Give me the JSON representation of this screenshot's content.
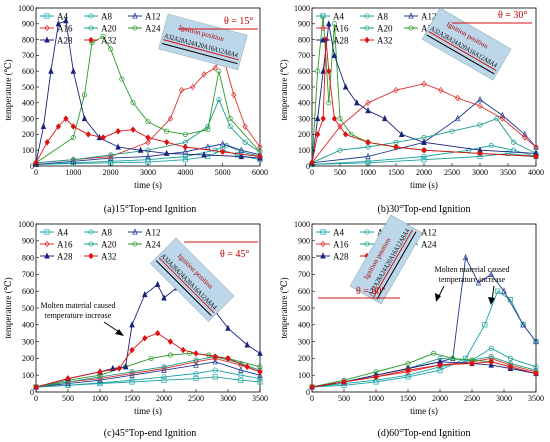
{
  "colors": {
    "A4": "#1aa3a3",
    "A8": "#1aa3a3",
    "A12": "#1f3a93",
    "A16": "#e03030",
    "A20": "#1a9c8a",
    "A24": "#2a9a2a",
    "A28": "#1a237e",
    "A32": "#e01010",
    "inset_bg": "#bcd6ea",
    "inset_red": "#d01010"
  },
  "legend": [
    "A4",
    "A8",
    "A12",
    "A16",
    "A20",
    "A24",
    "A28",
    "A32"
  ],
  "marker_shapes": {
    "A4": "square",
    "A8": "circle",
    "A12": "triangle",
    "A16": "diamond",
    "A20": "circle",
    "A24": "circle",
    "A28": "triangle",
    "A32": "diamond"
  },
  "inset": {
    "sequence": "A32A28A24A20A16A12A8A4",
    "ignition_label": "Ignition position"
  },
  "chart_data": [
    {
      "type": "line",
      "caption": "(a)15°Top-end Ignition",
      "angle_label": "θ = 15°",
      "xlabel": "time  (s)",
      "ylabel": "temperature (℃)",
      "xlim": [
        0,
        6000
      ],
      "ylim": [
        0,
        1000
      ],
      "xticks": [
        0,
        1000,
        2000,
        3000,
        4000,
        5000,
        6000
      ],
      "yticks": [
        0,
        100,
        200,
        300,
        400,
        500,
        600,
        700,
        800,
        900,
        1000
      ],
      "series": [
        {
          "name": "A4",
          "x": [
            0,
            1000,
            2000,
            3000,
            4000,
            4600,
            5000,
            5400,
            6000
          ],
          "y": [
            10,
            15,
            20,
            25,
            40,
            60,
            100,
            70,
            40
          ]
        },
        {
          "name": "A8",
          "x": [
            0,
            1000,
            2000,
            3000,
            4000,
            4800,
            5100,
            5500,
            6000
          ],
          "y": [
            10,
            20,
            30,
            40,
            60,
            100,
            130,
            90,
            60
          ]
        },
        {
          "name": "A12",
          "x": [
            0,
            1000,
            2000,
            3000,
            4000,
            4600,
            5000,
            5500,
            6000
          ],
          "y": [
            10,
            30,
            50,
            60,
            90,
            120,
            140,
            100,
            70
          ]
        },
        {
          "name": "A16",
          "x": [
            0,
            1000,
            2000,
            3000,
            3600,
            3900,
            4200,
            4500,
            4800,
            5000,
            5300,
            5600,
            6000
          ],
          "y": [
            20,
            40,
            60,
            150,
            300,
            480,
            500,
            580,
            620,
            700,
            450,
            250,
            120
          ]
        },
        {
          "name": "A20",
          "x": [
            0,
            1000,
            2000,
            3000,
            4000,
            4600,
            4900,
            5200,
            5600,
            6000
          ],
          "y": [
            20,
            40,
            70,
            100,
            150,
            250,
            420,
            250,
            150,
            90
          ]
        },
        {
          "name": "A24",
          "x": [
            0,
            1000,
            1300,
            1500,
            1800,
            2000,
            2300,
            2600,
            3000,
            3500,
            4000,
            4600,
            4900,
            5200,
            6000
          ],
          "y": [
            20,
            180,
            450,
            780,
            820,
            740,
            550,
            400,
            280,
            220,
            200,
            230,
            600,
            300,
            90
          ]
        },
        {
          "name": "A28",
          "x": [
            0,
            200,
            400,
            600,
            800,
            1000,
            1300,
            1700,
            2200,
            2800,
            3500,
            4500,
            5500,
            6000
          ],
          "y": [
            20,
            250,
            600,
            900,
            920,
            600,
            300,
            180,
            120,
            100,
            80,
            70,
            60,
            50
          ]
        },
        {
          "name": "A32",
          "x": [
            0,
            300,
            600,
            800,
            1000,
            1400,
            1800,
            2200,
            2600,
            3000,
            3500,
            4000,
            5000,
            6000
          ],
          "y": [
            20,
            150,
            250,
            300,
            250,
            200,
            180,
            220,
            230,
            180,
            150,
            120,
            90,
            60
          ]
        }
      ]
    },
    {
      "type": "line",
      "caption": "(b)30°Top-end Ignition",
      "angle_label": "θ = 30°",
      "xlabel": "time  (s)",
      "ylabel": "temperature (℃)",
      "xlim": [
        0,
        4000
      ],
      "ylim": [
        0,
        1000
      ],
      "xticks": [
        0,
        500,
        1000,
        1500,
        2000,
        2500,
        3000,
        3500,
        4000
      ],
      "yticks": [
        0,
        100,
        200,
        300,
        400,
        500,
        600,
        700,
        800,
        900,
        1000
      ],
      "series": [
        {
          "name": "A4",
          "x": [
            0,
            1000,
            2000,
            3000,
            3500,
            4000
          ],
          "y": [
            10,
            20,
            40,
            60,
            80,
            60
          ]
        },
        {
          "name": "A8",
          "x": [
            0,
            1000,
            2000,
            2800,
            3200,
            3600,
            4000
          ],
          "y": [
            10,
            30,
            60,
            100,
            130,
            100,
            60
          ]
        },
        {
          "name": "A12",
          "x": [
            0,
            1000,
            2000,
            2600,
            3000,
            3400,
            3800,
            4000
          ],
          "y": [
            20,
            60,
            150,
            300,
            420,
            320,
            200,
            120
          ]
        },
        {
          "name": "A16",
          "x": [
            0,
            500,
            1000,
            1500,
            2000,
            2300,
            2600,
            3000,
            3400,
            3800,
            4000
          ],
          "y": [
            20,
            250,
            400,
            480,
            520,
            480,
            430,
            380,
            300,
            180,
            120
          ]
        },
        {
          "name": "A20",
          "x": [
            0,
            500,
            1000,
            1500,
            2000,
            2500,
            3000,
            3300,
            3600,
            4000
          ],
          "y": [
            20,
            100,
            120,
            150,
            180,
            220,
            260,
            300,
            150,
            80
          ]
        },
        {
          "name": "A24",
          "x": [
            0,
            100,
            200,
            300,
            400,
            500,
            700,
            1000,
            1500,
            2000,
            3000,
            4000
          ],
          "y": [
            20,
            600,
            950,
            400,
            900,
            300,
            200,
            150,
            120,
            100,
            80,
            60
          ]
        },
        {
          "name": "A28",
          "x": [
            0,
            100,
            200,
            300,
            400,
            600,
            800,
            1000,
            1300,
            1600,
            2000,
            3000,
            4000
          ],
          "y": [
            20,
            300,
            600,
            900,
            700,
            500,
            400,
            350,
            300,
            200,
            150,
            100,
            80
          ]
        },
        {
          "name": "A32",
          "x": [
            0,
            100,
            200,
            250,
            300,
            400,
            600,
            1000,
            1500,
            2000,
            3000,
            4000
          ],
          "y": [
            20,
            200,
            300,
            800,
            600,
            300,
            200,
            150,
            120,
            100,
            80,
            60
          ]
        }
      ]
    },
    {
      "type": "line",
      "caption": "(c)45°Top-end Ignition",
      "angle_label": "θ = 45°",
      "annotation": "Molten material caused temperature increase",
      "xlabel": "time  (s)",
      "ylabel": "temperature (℃)",
      "xlim": [
        0,
        3500
      ],
      "ylim": [
        0,
        1000
      ],
      "xticks": [
        0,
        500,
        1000,
        1500,
        2000,
        2500,
        3000,
        3500
      ],
      "yticks": [
        0,
        100,
        200,
        300,
        400,
        500,
        600,
        700,
        800,
        900,
        1000
      ],
      "series": [
        {
          "name": "A4",
          "x": [
            0,
            500,
            1000,
            1500,
            2000,
            2500,
            2800,
            3200,
            3500
          ],
          "y": [
            30,
            40,
            50,
            60,
            70,
            80,
            90,
            70,
            60
          ]
        },
        {
          "name": "A8",
          "x": [
            0,
            500,
            1000,
            1500,
            2000,
            2500,
            2800,
            3200,
            3500
          ],
          "y": [
            30,
            40,
            55,
            70,
            90,
            110,
            130,
            100,
            80
          ]
        },
        {
          "name": "A12",
          "x": [
            0,
            500,
            1000,
            1500,
            2000,
            2500,
            2800,
            3200,
            3500
          ],
          "y": [
            30,
            50,
            70,
            100,
            130,
            160,
            180,
            130,
            100
          ]
        },
        {
          "name": "A16",
          "x": [
            0,
            500,
            1000,
            1500,
            2000,
            2500,
            2800,
            3200,
            3500
          ],
          "y": [
            30,
            60,
            80,
            110,
            140,
            180,
            200,
            160,
            120
          ]
        },
        {
          "name": "A20",
          "x": [
            0,
            500,
            1000,
            1500,
            2000,
            2500,
            2800,
            3200,
            3500
          ],
          "y": [
            30,
            60,
            90,
            120,
            150,
            190,
            210,
            170,
            130
          ]
        },
        {
          "name": "A24",
          "x": [
            0,
            500,
            1000,
            1400,
            1800,
            2100,
            2400,
            2700,
            3000,
            3500
          ],
          "y": [
            30,
            70,
            100,
            150,
            200,
            220,
            230,
            220,
            200,
            150
          ]
        },
        {
          "name": "A28",
          "x": [
            0,
            500,
            1000,
            1200,
            1400,
            1500,
            1700,
            1900,
            2000,
            2200,
            2500,
            2800,
            3000,
            3300,
            3500
          ],
          "y": [
            30,
            80,
            120,
            140,
            150,
            400,
            580,
            640,
            560,
            620,
            580,
            480,
            380,
            280,
            230
          ]
        },
        {
          "name": "A32",
          "x": [
            0,
            500,
            1000,
            1300,
            1500,
            1700,
            1900,
            2100,
            2300,
            2500,
            2800,
            3000,
            3300,
            3500
          ],
          "y": [
            30,
            80,
            120,
            140,
            250,
            320,
            350,
            300,
            250,
            230,
            210,
            200,
            150,
            120
          ]
        }
      ]
    },
    {
      "type": "line",
      "caption": "(d)60°Top-end Ignition",
      "angle_label": "θ = 60°",
      "annotation": "Molten material caused temperature increase",
      "xlabel": "time  (s)",
      "ylabel": "temperature (℃)",
      "xlim": [
        0,
        3500
      ],
      "ylim": [
        0,
        1000
      ],
      "xticks": [
        0,
        500,
        1000,
        1500,
        2000,
        2500,
        3000,
        3500
      ],
      "yticks": [
        0,
        100,
        200,
        300,
        400,
        500,
        600,
        700,
        800,
        900,
        1000
      ],
      "series": [
        {
          "name": "A4",
          "x": [
            0,
            500,
            1000,
            1500,
            2000,
            2400,
            2700,
            2900,
            3100,
            3300,
            3500
          ],
          "y": [
            30,
            40,
            60,
            90,
            130,
            200,
            400,
            600,
            550,
            400,
            300
          ]
        },
        {
          "name": "A8",
          "x": [
            0,
            500,
            1000,
            1500,
            2000,
            2500,
            2800,
            3100,
            3500
          ],
          "y": [
            30,
            50,
            70,
            100,
            150,
            190,
            260,
            200,
            150
          ]
        },
        {
          "name": "A12",
          "x": [
            0,
            500,
            1000,
            1500,
            2000,
            2200,
            2400,
            2600,
            2800,
            3000,
            3300,
            3500
          ],
          "y": [
            30,
            60,
            100,
            140,
            180,
            200,
            800,
            650,
            700,
            600,
            400,
            300
          ]
        },
        {
          "name": "A16",
          "x": [
            0,
            500,
            1000,
            1500,
            2000,
            2500,
            2800,
            3100,
            3500
          ],
          "y": [
            30,
            60,
            90,
            120,
            160,
            180,
            200,
            160,
            120
          ]
        },
        {
          "name": "A20",
          "x": [
            0,
            500,
            1000,
            1500,
            2000,
            2500,
            2800,
            3100,
            3500
          ],
          "y": [
            30,
            60,
            100,
            140,
            200,
            190,
            210,
            170,
            130
          ]
        },
        {
          "name": "A24",
          "x": [
            0,
            500,
            1000,
            1500,
            1900,
            2200,
            2500,
            2800,
            3100,
            3500
          ],
          "y": [
            30,
            70,
            120,
            170,
            230,
            200,
            190,
            180,
            150,
            110
          ]
        },
        {
          "name": "A28",
          "x": [
            0,
            500,
            1000,
            1500,
            2000,
            2500,
            2800,
            3100,
            3500
          ],
          "y": [
            30,
            60,
            100,
            140,
            180,
            170,
            160,
            140,
            110
          ]
        },
        {
          "name": "A32",
          "x": [
            0,
            500,
            1000,
            1500,
            2000,
            2500,
            2800,
            3100,
            3500
          ],
          "y": [
            30,
            60,
            90,
            130,
            160,
            170,
            180,
            150,
            110
          ]
        }
      ]
    }
  ]
}
